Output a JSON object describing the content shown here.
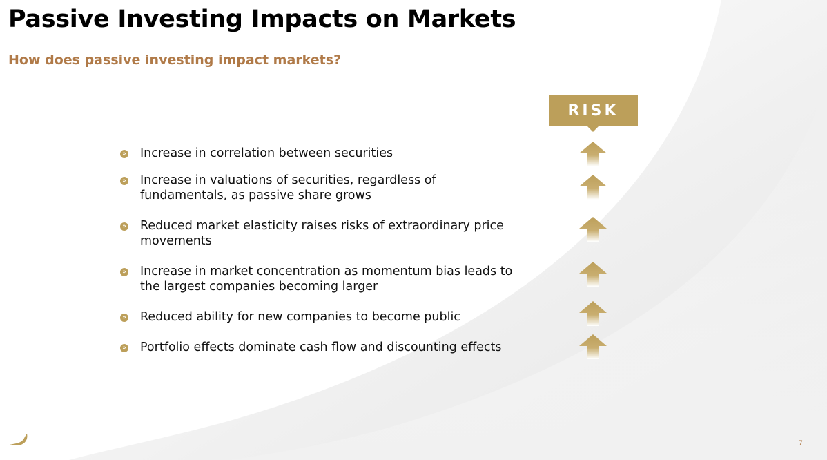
{
  "title": "Passive Investing Impacts on Markets",
  "subtitle": "How does passive investing impact markets?",
  "risk_label": "RISK",
  "bullet_glyph": "»",
  "items": [
    {
      "text": "Increase in correlation between securities",
      "risk_direction": "up"
    },
    {
      "text": "Increase in valuations of securities, regardless of fundamentals, as passive share grows",
      "risk_direction": "up"
    },
    {
      "text": "Reduced market elasticity raises risks of extraordinary price movements",
      "risk_direction": "up"
    },
    {
      "text": "Increase in market concentration as momentum bias leads to the largest companies becoming larger",
      "risk_direction": "up"
    },
    {
      "text": "Reduced ability for new companies to become public",
      "risk_direction": "up"
    },
    {
      "text": "Portfolio effects dominate cash flow and discounting effects",
      "risk_direction": "up"
    }
  ],
  "page_number": "7",
  "colors": {
    "accent_gold": "#bc9f5a",
    "subtitle_brown": "#b07a48",
    "text": "#111111"
  },
  "icons": {
    "risk_arrow": "arrow-up-icon",
    "bullet": "double-chevron-right-icon",
    "logo": "brand-logo-mark"
  }
}
